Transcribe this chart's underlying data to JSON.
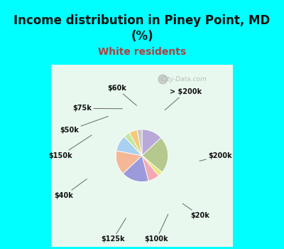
{
  "title": "Income distribution in Piney Point, MD\n(%)",
  "subtitle": "White residents",
  "title_color": "#111111",
  "subtitle_color": "#b04040",
  "background_top": "#00ffff",
  "background_chart_outer": "#c8ecd4",
  "background_chart_inner": "#e8f8ee",
  "labels": [
    "> $200k",
    "$200k",
    "$20k",
    "$100k",
    "$125k",
    "$40k",
    "$150k",
    "$50k",
    "$75k",
    "$60k"
  ],
  "sizes": [
    13,
    23,
    3,
    7,
    17,
    15,
    10,
    4,
    5,
    3
  ],
  "colors": [
    "#b8a9d9",
    "#b5c98e",
    "#e8e87a",
    "#f4a9b5",
    "#9b9bdb",
    "#f4b896",
    "#a8d0f0",
    "#c5e8a0",
    "#f5c97a",
    "#c8c8c8"
  ],
  "startangle": 90,
  "label_fontsize": 7.0,
  "watermark": "  City-Data.com"
}
